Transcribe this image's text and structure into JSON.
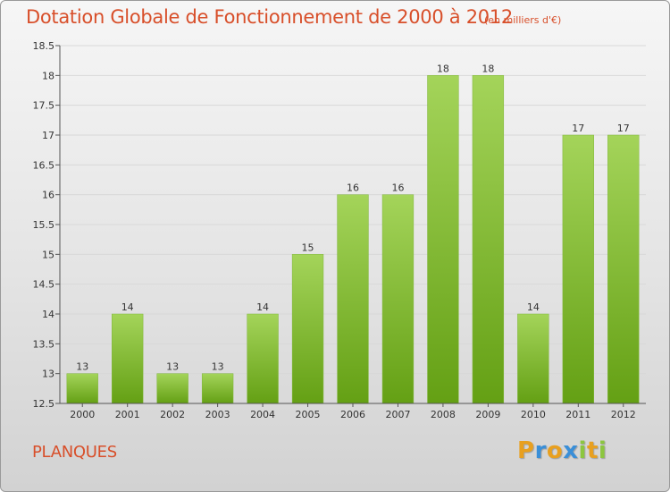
{
  "header": {
    "title": "Dotation Globale de Fonctionnement de 2000 à 2012",
    "subtitle": "(en milliers d'€)"
  },
  "footer": {
    "commune": "PLANQUES",
    "logo_letters": [
      "P",
      "r",
      "o",
      "x",
      "i",
      "t",
      "i"
    ],
    "logo_colors": [
      "#e8a020",
      "#3a8fd8",
      "#e8a020",
      "#3a8fd8",
      "#8cc63f",
      "#e8a020",
      "#8cc63f"
    ]
  },
  "colors": {
    "bar_top": "#a4d45a",
    "bar_bottom": "#64a014",
    "grid": "#d8d8d8",
    "title": "#d84f2a"
  },
  "chart_data": {
    "type": "bar",
    "title": "Dotation Globale de Fonctionnement de 2000 à 2012",
    "subtitle": "(en milliers d'€)",
    "xlabel": "",
    "ylabel": "",
    "categories": [
      "2000",
      "2001",
      "2002",
      "2003",
      "2004",
      "2005",
      "2006",
      "2007",
      "2008",
      "2009",
      "2010",
      "2011",
      "2012"
    ],
    "values": [
      13,
      14,
      13,
      13,
      14,
      15,
      16,
      16,
      18,
      18,
      14,
      17,
      17
    ],
    "value_labels": [
      "13",
      "14",
      "13",
      "13",
      "14",
      "15",
      "16",
      "16",
      "18",
      "18",
      "14",
      "17",
      "17"
    ],
    "ylim": [
      12.5,
      18.5
    ],
    "yticks": [
      12.5,
      13,
      13.5,
      14,
      14.5,
      15,
      15.5,
      16,
      16.5,
      17,
      17.5,
      18,
      18.5
    ],
    "ytick_labels": [
      "12.5",
      "13",
      "13.5",
      "14",
      "14.5",
      "15",
      "15.5",
      "16",
      "16.5",
      "17",
      "17.5",
      "18",
      "18.5"
    ],
    "grid": "horizontal",
    "legend": "none"
  }
}
